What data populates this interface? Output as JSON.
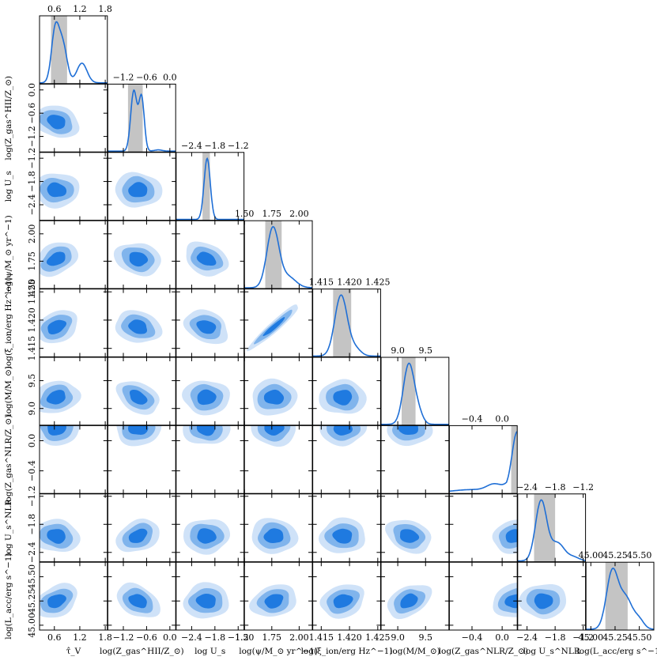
{
  "chart_data": {
    "type": "corner",
    "parameters": [
      {
        "id": "tauv",
        "label": "τ̂_V",
        "tick_labels": [
          "0.6",
          "1.2",
          "1.8"
        ],
        "ticks": [
          0.6,
          1.2,
          1.8
        ],
        "range": [
          0.25,
          1.85
        ],
        "median": 0.65,
        "interval": [
          0.52,
          0.9
        ]
      },
      {
        "id": "zhii",
        "label": "log(Z_gas^HII/Z_⊙)",
        "tick_labels": [
          "−1.2",
          "−0.6",
          "0.0"
        ],
        "ticks": [
          -1.2,
          -0.6,
          0.0
        ],
        "range": [
          -1.6,
          0.15
        ],
        "median": -0.82,
        "interval": [
          -1.08,
          -0.7
        ]
      },
      {
        "id": "us",
        "label": "log U_s",
        "tick_labels": [
          "−2.4",
          "−1.8",
          "−1.2"
        ],
        "ticks": [
          -2.4,
          -1.8,
          -1.2
        ],
        "range": [
          -2.8,
          -1.05
        ],
        "median": -2.02,
        "interval": [
          -2.12,
          -1.93
        ]
      },
      {
        "id": "psi",
        "label": "log(ψ/M_⊙ yr^−1)",
        "tick_labels": [
          "1.50",
          "1.75",
          "2.00"
        ],
        "ticks": [
          1.5,
          1.75,
          2.0
        ],
        "range": [
          1.5,
          2.12
        ],
        "median": 1.77,
        "interval": [
          1.69,
          1.84
        ]
      },
      {
        "id": "xi",
        "label": "log(ξ_ion/erg Hz^−1)",
        "tick_labels": [
          "1.415",
          "1.420",
          "1.425"
        ],
        "ticks": [
          1.415,
          1.42,
          1.425
        ],
        "range": [
          1.4135,
          1.4255
        ],
        "median": 1.4188,
        "interval": [
          1.4171,
          1.4203
        ]
      },
      {
        "id": "mass",
        "label": "log(M/M_⊙)",
        "tick_labels": [
          "9.0",
          "9.5"
        ],
        "ticks": [
          9.0,
          9.5
        ],
        "range": [
          8.7,
          9.92
        ],
        "median": 9.2,
        "interval": [
          9.07,
          9.32
        ]
      },
      {
        "id": "znlr",
        "label": "log(Z_gas^NLR/Z_⊙)",
        "tick_labels": [
          "−0.4",
          "0.0"
        ],
        "ticks": [
          -0.4,
          0.0
        ],
        "range": [
          -0.7,
          0.2
        ],
        "median": 0.17,
        "interval": [
          0.12,
          0.2
        ]
      },
      {
        "id": "usnlr",
        "label": "log U_s^NLR",
        "tick_labels": [
          "−2.4",
          "−1.8",
          "−1.2"
        ],
        "ticks": [
          -2.4,
          -1.8,
          -1.2
        ],
        "range": [
          -2.6,
          -1.15
        ],
        "median": -2.05,
        "interval": [
          -2.25,
          -1.8
        ]
      },
      {
        "id": "lacc",
        "label": "log(L_acc/erg s^−1)",
        "tick_labels": [
          "45.00",
          "45.25",
          "45.50"
        ],
        "ticks": [
          45.0,
          45.25,
          45.5
        ],
        "range": [
          44.95,
          45.65
        ],
        "median": 45.25,
        "interval": [
          45.15,
          45.38
        ]
      }
    ],
    "levels": [
      "68%",
      "95%",
      "99%"
    ],
    "colors": {
      "line": "#1f6fd6",
      "inner": "#1f7ae0",
      "middle": "#80b4ec",
      "outer": "#cfe2f8",
      "band": "#c4c4c4"
    },
    "grid": false,
    "legend": "none"
  }
}
